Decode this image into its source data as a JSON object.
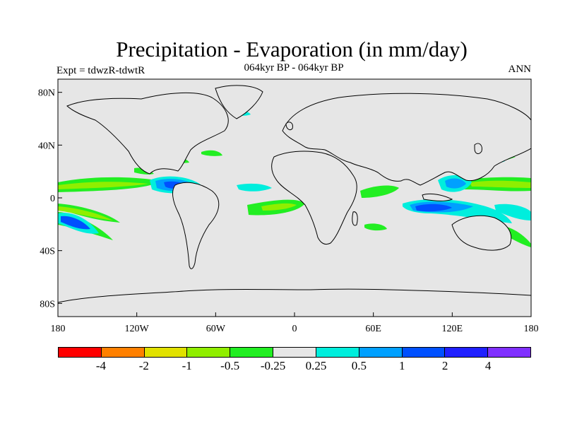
{
  "title": "Precipitation - Evaporation (in mm/day)",
  "subtitle": "064kyr BP - 064kyr BP",
  "left_label": "Expt = tdwzR-tdwtR",
  "right_label": "ANN",
  "map": {
    "ocean_color": "#e6e6e6",
    "lat_ticks": [
      "80N",
      "40N",
      "0",
      "40S",
      "80S"
    ],
    "lon_ticks": [
      "180",
      "120W",
      "60W",
      "0",
      "60E",
      "120E",
      "180"
    ]
  },
  "colorbar": {
    "colors": [
      "#ff0000",
      "#ff8000",
      "#e1e100",
      "#90ee00",
      "#22ee22",
      "#e6e6e6",
      "#00eedd",
      "#00a0ff",
      "#0050ff",
      "#2020ff",
      "#8030ff"
    ],
    "labels": [
      "-4",
      "-2",
      "-1",
      "-0.5",
      "-0.25",
      "0.25",
      "0.5",
      "1",
      "2",
      "4"
    ]
  },
  "chart_data": {
    "type": "filled-contour-map",
    "variable": "Precipitation - Evaporation",
    "units": "mm/day",
    "levels": [
      -4,
      -2,
      -1,
      -0.5,
      -0.25,
      0.25,
      0.5,
      1,
      2,
      4
    ],
    "lon_range": [
      -180,
      180
    ],
    "lat_range": [
      -90,
      90
    ]
  }
}
